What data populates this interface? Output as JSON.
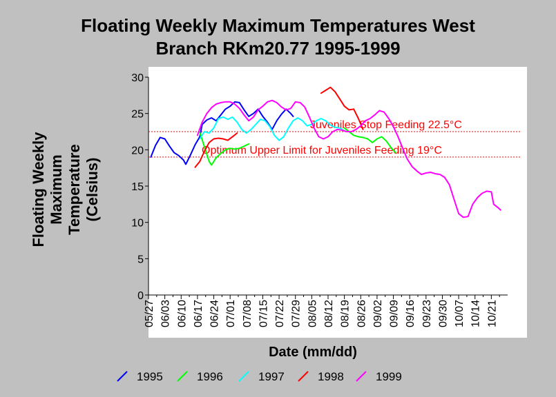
{
  "chart_data": {
    "type": "line",
    "title_lines": [
      "Floating Weekly Maximum Temperatures West",
      "Branch RKm20.77 1995-1999"
    ],
    "ylabel_lines": [
      "Floating Weekly",
      "Maximum",
      "Temperature",
      "(Celsius)"
    ],
    "xlabel": "Date (mm/dd)",
    "ylim": [
      0,
      30
    ],
    "yticks": [
      0,
      5,
      10,
      15,
      20,
      25,
      30
    ],
    "ytick_labels": [
      "0",
      "5",
      "10",
      "15",
      "20",
      "25",
      "30"
    ],
    "xlim": [
      "05/27",
      "10/28"
    ],
    "xtick_labels": [
      "05/27",
      "06/03",
      "06/10",
      "06/17",
      "06/24",
      "07/01",
      "07/08",
      "07/15",
      "07/22",
      "07/29",
      "08/05",
      "08/12",
      "08/19",
      "08/26",
      "09/02",
      "09/09",
      "09/16",
      "09/23",
      "09/30",
      "10/07",
      "10/14",
      "10/21"
    ],
    "grid": false,
    "legend_position": "bottom",
    "reference_lines": [
      {
        "y": 22.5,
        "label": "Juveniles Stop Feeding 22.5°C",
        "color": "#ff0000",
        "style": "dotted"
      },
      {
        "y": 19,
        "label": "Optimum Upper Limit for Juveniles Feeding 19°C",
        "color": "#ff0000",
        "style": "dotted"
      }
    ],
    "series": [
      {
        "name": "1995",
        "color": "#0000ff",
        "points": [
          [
            "05/28",
            19.0
          ],
          [
            "05/30",
            20.6
          ],
          [
            "06/01",
            21.7
          ],
          [
            "06/03",
            21.5
          ],
          [
            "06/05",
            20.5
          ],
          [
            "06/07",
            19.6
          ],
          [
            "06/09",
            19.2
          ],
          [
            "06/11",
            18.6
          ],
          [
            "06/12",
            18.0
          ],
          [
            "06/14",
            19.3
          ],
          [
            "06/16",
            20.7
          ],
          [
            "06/18",
            21.8
          ],
          [
            "06/19",
            23.5
          ],
          [
            "06/21",
            24.1
          ],
          [
            "06/23",
            24.4
          ],
          [
            "06/25",
            24.0
          ],
          [
            "06/27",
            24.8
          ],
          [
            "06/29",
            25.6
          ],
          [
            "07/01",
            26.0
          ],
          [
            "07/03",
            26.6
          ],
          [
            "07/05",
            26.5
          ],
          [
            "07/07",
            25.5
          ],
          [
            "07/09",
            24.6
          ],
          [
            "07/11",
            25.0
          ],
          [
            "07/13",
            25.6
          ],
          [
            "07/15",
            24.6
          ],
          [
            "07/17",
            23.8
          ],
          [
            "07/19",
            22.8
          ],
          [
            "07/21",
            24.0
          ],
          [
            "07/23",
            24.9
          ],
          [
            "07/25",
            25.6
          ],
          [
            "07/27",
            25.0
          ],
          [
            "07/28",
            24.6
          ]
        ]
      },
      {
        "name": "1996",
        "color": "#00ff00",
        "points": [
          [
            "06/18",
            22.4
          ],
          [
            "06/20",
            20.4
          ],
          [
            "06/22",
            18.4
          ],
          [
            "06/23",
            17.9
          ],
          [
            "06/25",
            18.9
          ],
          [
            "06/27",
            19.5
          ],
          [
            "06/29",
            20.0
          ],
          [
            "07/01",
            20.2
          ],
          [
            "07/03",
            20.1
          ],
          [
            "07/05",
            20.2
          ],
          [
            "07/07",
            20.5
          ],
          [
            "07/09",
            20.8
          ],
          null,
          [
            "08/19",
            23.0
          ],
          [
            "08/21",
            22.5
          ],
          [
            "08/23",
            22.0
          ],
          [
            "08/25",
            21.8
          ],
          [
            "08/27",
            21.7
          ],
          [
            "08/29",
            21.5
          ],
          [
            "08/31",
            21.0
          ],
          [
            "09/02",
            21.5
          ],
          [
            "09/04",
            21.8
          ],
          [
            "09/06",
            21.2
          ],
          [
            "09/08",
            20.3
          ],
          [
            "09/10",
            19.6
          ]
        ]
      },
      {
        "name": "1997",
        "color": "#00ffff",
        "points": [
          [
            "06/18",
            21.5
          ],
          [
            "06/20",
            22.5
          ],
          [
            "06/22",
            22.3
          ],
          [
            "06/24",
            23.0
          ],
          [
            "06/26",
            24.3
          ],
          [
            "06/28",
            24.5
          ],
          [
            "06/30",
            24.2
          ],
          [
            "07/02",
            24.5
          ],
          [
            "07/04",
            23.8
          ],
          [
            "07/06",
            22.8
          ],
          [
            "07/08",
            22.3
          ],
          [
            "07/10",
            22.8
          ],
          [
            "07/12",
            23.5
          ],
          [
            "07/14",
            24.2
          ],
          [
            "07/16",
            24.0
          ],
          [
            "07/18",
            23.2
          ],
          [
            "07/20",
            22.0
          ],
          [
            "07/22",
            21.3
          ],
          [
            "07/24",
            21.8
          ],
          [
            "07/26",
            23.0
          ],
          [
            "07/28",
            24.0
          ],
          [
            "07/30",
            24.4
          ],
          [
            "08/01",
            24.0
          ],
          [
            "08/03",
            23.3
          ],
          [
            "08/05",
            23.5
          ],
          [
            "08/07",
            24.0
          ],
          [
            "08/09",
            24.3
          ],
          [
            "08/11",
            24.0
          ],
          [
            "08/13",
            23.4
          ],
          [
            "08/15",
            23.1
          ],
          [
            "08/17",
            23.0
          ],
          [
            "08/19",
            22.6
          ]
        ]
      },
      {
        "name": "1998",
        "color": "#ff0000",
        "points": [
          [
            "06/16",
            17.6
          ],
          [
            "06/18",
            18.4
          ],
          [
            "06/20",
            19.8
          ],
          [
            "06/22",
            21.0
          ],
          [
            "06/24",
            21.5
          ],
          [
            "06/26",
            21.6
          ],
          [
            "06/28",
            21.5
          ],
          [
            "06/30",
            21.3
          ],
          [
            "07/02",
            21.8
          ],
          [
            "07/04",
            22.3
          ],
          null,
          [
            "08/09",
            27.8
          ],
          [
            "08/11",
            28.2
          ],
          [
            "08/13",
            28.6
          ],
          [
            "08/15",
            28.0
          ],
          [
            "08/17",
            27.0
          ],
          [
            "08/19",
            26.0
          ],
          [
            "08/21",
            25.5
          ],
          [
            "08/23",
            25.6
          ],
          [
            "08/25",
            24.3
          ],
          [
            "08/27",
            22.8
          ]
        ]
      },
      {
        "name": "1999",
        "color": "#ff00ff",
        "points": [
          [
            "06/17",
            22.0
          ],
          [
            "06/19",
            23.8
          ],
          [
            "06/21",
            25.0
          ],
          [
            "06/23",
            25.8
          ],
          [
            "06/25",
            26.3
          ],
          [
            "06/27",
            26.5
          ],
          [
            "06/29",
            26.6
          ],
          [
            "07/01",
            26.6
          ],
          [
            "07/03",
            26.3
          ],
          [
            "07/05",
            25.7
          ],
          [
            "07/07",
            24.8
          ],
          [
            "07/09",
            24.0
          ],
          [
            "07/11",
            24.5
          ],
          [
            "07/13",
            25.5
          ],
          [
            "07/15",
            26.0
          ],
          [
            "07/17",
            26.6
          ],
          [
            "07/19",
            26.8
          ],
          [
            "07/21",
            26.5
          ],
          [
            "07/23",
            25.9
          ],
          [
            "07/25",
            25.5
          ],
          [
            "07/27",
            25.7
          ],
          [
            "07/29",
            26.6
          ],
          [
            "07/31",
            26.5
          ],
          [
            "08/02",
            25.9
          ],
          [
            "08/04",
            24.5
          ],
          [
            "08/06",
            23.0
          ],
          [
            "08/08",
            21.8
          ],
          [
            "08/10",
            21.5
          ],
          [
            "08/12",
            21.8
          ],
          [
            "08/14",
            22.5
          ],
          [
            "08/16",
            22.8
          ],
          [
            "08/18",
            22.7
          ],
          [
            "08/20",
            22.5
          ],
          [
            "08/22",
            22.5
          ],
          [
            "08/24",
            22.8
          ],
          [
            "08/26",
            23.3
          ],
          [
            "08/28",
            24.0
          ],
          [
            "08/30",
            24.3
          ],
          [
            "09/01",
            24.8
          ],
          [
            "09/03",
            25.4
          ],
          [
            "09/05",
            25.2
          ],
          [
            "09/07",
            24.3
          ],
          [
            "09/09",
            23.2
          ],
          [
            "09/11",
            21.8
          ],
          [
            "09/13",
            20.2
          ],
          [
            "09/15",
            18.7
          ],
          [
            "09/17",
            17.7
          ],
          [
            "09/19",
            17.1
          ],
          [
            "09/21",
            16.6
          ],
          [
            "09/23",
            16.8
          ],
          [
            "09/25",
            16.9
          ],
          [
            "09/27",
            16.7
          ],
          [
            "09/29",
            16.6
          ],
          [
            "10/01",
            16.2
          ],
          [
            "10/03",
            15.2
          ],
          [
            "10/05",
            13.2
          ],
          [
            "10/07",
            11.2
          ],
          [
            "10/09",
            10.7
          ],
          [
            "10/11",
            10.8
          ],
          [
            "10/13",
            12.5
          ],
          [
            "10/15",
            13.4
          ],
          [
            "10/17",
            14.0
          ],
          [
            "10/19",
            14.3
          ],
          [
            "10/21",
            14.2
          ],
          [
            "10/22",
            12.5
          ],
          [
            "10/24",
            12.0
          ],
          [
            "10/25",
            11.7
          ]
        ]
      }
    ]
  }
}
